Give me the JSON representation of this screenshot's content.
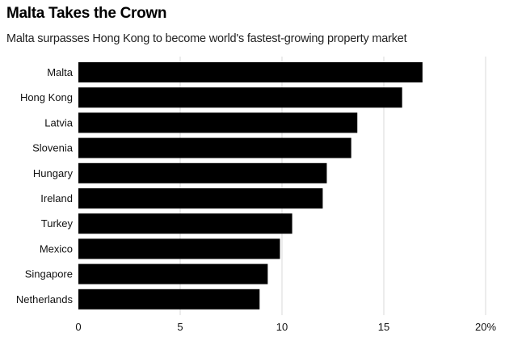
{
  "chart_data": {
    "type": "bar",
    "orientation": "horizontal",
    "title": "Malta Takes the Crown",
    "subtitle": "Malta surpasses Hong Kong to become world's fastest-growing property market",
    "categories": [
      "Malta",
      "Hong Kong",
      "Latvia",
      "Slovenia",
      "Hungary",
      "Ireland",
      "Turkey",
      "Mexico",
      "Singapore",
      "Netherlands"
    ],
    "values": [
      16.9,
      15.9,
      13.7,
      13.4,
      12.2,
      12.0,
      10.5,
      9.9,
      9.3,
      8.9
    ],
    "xlim": [
      0,
      20
    ],
    "xticks": [
      0,
      5,
      10,
      15,
      20
    ],
    "xtick_labels": [
      "0",
      "5",
      "10",
      "15",
      "20%"
    ],
    "grid": "vertical",
    "bar_color": "#000000",
    "grid_color": "#d9d9d9"
  }
}
